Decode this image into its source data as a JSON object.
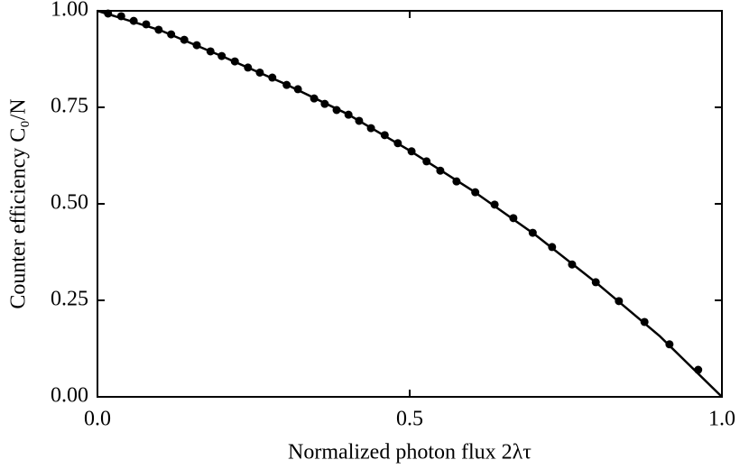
{
  "chart_data": {
    "type": "line",
    "x_label": "Normalized photon flux 2λτ",
    "y_label": "Counter efficiency C₀/N",
    "xlim": [
      0,
      1
    ],
    "ylim": [
      0,
      1
    ],
    "xticks": [
      {
        "value": 0,
        "label": "0.0"
      },
      {
        "value": 0.5,
        "label": "0.5"
      },
      {
        "value": 1,
        "label": "1.0"
      }
    ],
    "yticks": [
      {
        "value": 0,
        "label": "0.00"
      },
      {
        "value": 0.25,
        "label": "0.25"
      },
      {
        "value": 0.5,
        "label": "0.50"
      },
      {
        "value": 0.75,
        "label": "0.75"
      },
      {
        "value": 1,
        "label": "1.00"
      }
    ],
    "grid": false,
    "series": [
      {
        "kind": "line",
        "color": "#000000",
        "x": [
          0,
          0.1,
          0.2,
          0.3,
          0.4,
          0.5,
          0.6,
          0.7,
          0.8,
          0.9,
          1.0
        ],
        "values": [
          1,
          0.95,
          0.882,
          0.811,
          0.733,
          0.638,
          0.535,
          0.421,
          0.294,
          0.158,
          0
        ]
      },
      {
        "kind": "scatter",
        "color": "#000000",
        "x": [
          0.017,
          0.038,
          0.058,
          0.078,
          0.098,
          0.118,
          0.139,
          0.159,
          0.181,
          0.199,
          0.22,
          0.241,
          0.26,
          0.28,
          0.303,
          0.321,
          0.347,
          0.364,
          0.383,
          0.402,
          0.419,
          0.438,
          0.46,
          0.481,
          0.503,
          0.527,
          0.549,
          0.575,
          0.605,
          0.636,
          0.666,
          0.697,
          0.728,
          0.76,
          0.798,
          0.835,
          0.876,
          0.916,
          0.962
        ],
        "values": [
          0.993,
          0.986,
          0.974,
          0.965,
          0.951,
          0.939,
          0.925,
          0.911,
          0.895,
          0.883,
          0.869,
          0.853,
          0.84,
          0.827,
          0.808,
          0.797,
          0.773,
          0.759,
          0.743,
          0.731,
          0.715,
          0.696,
          0.678,
          0.657,
          0.636,
          0.61,
          0.586,
          0.558,
          0.53,
          0.498,
          0.463,
          0.425,
          0.388,
          0.343,
          0.297,
          0.248,
          0.194,
          0.136,
          0.07
        ]
      }
    ]
  }
}
